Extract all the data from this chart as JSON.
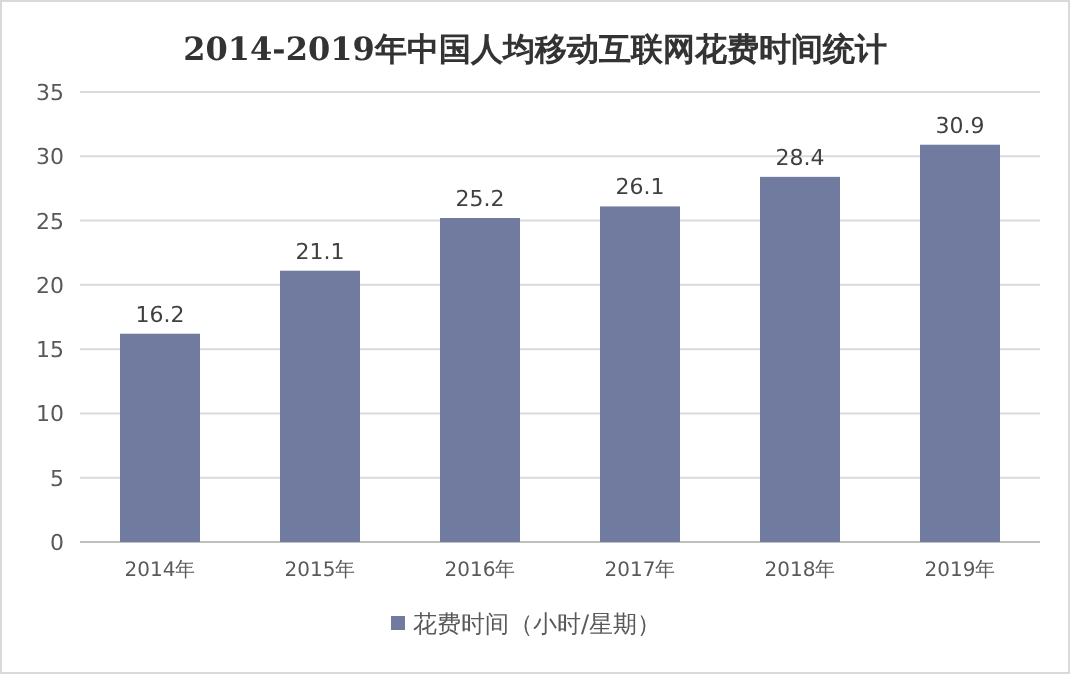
{
  "chart_data": {
    "type": "bar",
    "title": "2014-2019年中国人均移动互联网花费时间统计",
    "categories": [
      "2014年",
      "2015年",
      "2016年",
      "2017年",
      "2018年",
      "2019年"
    ],
    "series": [
      {
        "name": "花费时间（小时/星期）",
        "color": "#717b9f",
        "values": [
          16.2,
          21.1,
          25.2,
          26.1,
          28.4,
          30.9
        ]
      }
    ],
    "ylim": [
      0,
      35
    ],
    "yticks": [
      0,
      5,
      10,
      15,
      20,
      25,
      30,
      35
    ],
    "grid": "y",
    "legend": "bottom",
    "data_labels": true
  }
}
